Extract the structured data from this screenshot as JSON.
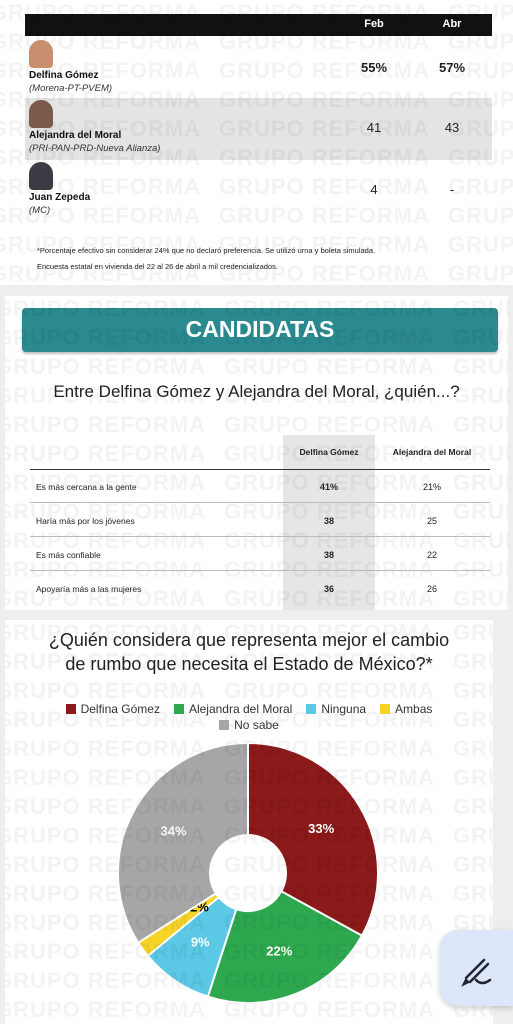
{
  "watermark": "GRUPO REFORMA",
  "poll_table": {
    "headers": [
      "Feb",
      "Abr"
    ],
    "rows": [
      {
        "name": "Delfina Gómez",
        "party": "(Morena-PT-PVEM)",
        "values": [
          "55%",
          "57%"
        ]
      },
      {
        "name": "Alejandra del Moral",
        "party": "(PRI-PAN-PRD-Nueva Alianza)",
        "values": [
          "41",
          "43"
        ]
      },
      {
        "name": "Juan Zepeda",
        "party": "(MC)",
        "values": [
          "4",
          "-"
        ]
      }
    ],
    "notes": [
      "*Porcentaje efectivo sin considerar 24% que no declaró preferencia. Se utilizó urna y boleta simulada.",
      "Encuesta estatal en vivienda del 22 al 26 de abril a mil credencializados."
    ]
  },
  "candidatas": {
    "banner": "CANDIDATAS",
    "question": "Entre Delfina Gómez y Alejandra del Moral, ¿quién...?",
    "headers": [
      "Delfina Gómez",
      "Alejandra del Moral"
    ],
    "rows": [
      [
        "Es más cercana a la gente",
        "41%",
        "21%"
      ],
      [
        "Haría más por los jóvenes",
        "38",
        "25"
      ],
      [
        "Es más confiable",
        "38",
        "22"
      ],
      [
        "Apoyaría más a las mujeres",
        "36",
        "26"
      ]
    ]
  },
  "chart_data": {
    "type": "pie",
    "title": "¿Quién considera que representa mejor el cambio de rumbo que necesita el Estado de México?*",
    "categories": [
      "Delfina Gómez",
      "Alejandra del Moral",
      "Ninguna",
      "Ambas",
      "No sabe"
    ],
    "colors": [
      "#8b1a1a",
      "#2ea84f",
      "#5bc8e6",
      "#f5d327",
      "#a6a6a6"
    ],
    "values": [
      33,
      22,
      9,
      2,
      34
    ],
    "value_labels": [
      "33%",
      "22%",
      "9%",
      "2%",
      "34%"
    ]
  }
}
